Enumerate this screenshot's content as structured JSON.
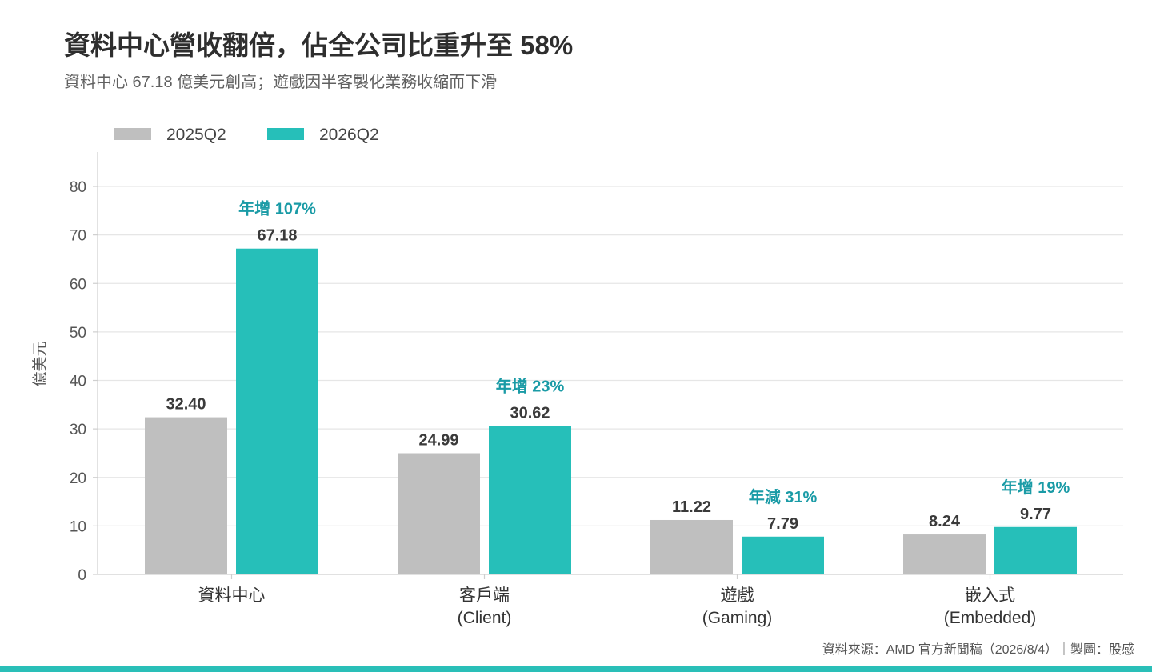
{
  "title": "資料中心營收翻倍，佔全公司比重升至 58%",
  "subtitle": "資料中心 67.18 億美元創高；遊戲因半客製化業務收縮而下滑",
  "source": "資料來源：AMD 官方新聞稿（2026/8/4）｜製圖：股感",
  "colors": {
    "series_2025": "#bfbfbf",
    "series_2026": "#26bfb9",
    "annotation": "#1a9ba6",
    "value_label": "#3a3a3a",
    "grid": "#e6e6e6",
    "axis": "#cfcfcf",
    "accent_band": "#2abfb8"
  },
  "chart_data": {
    "type": "bar",
    "ylabel": "億美元",
    "xlabel": "",
    "ylim": [
      0,
      80
    ],
    "yticks": [
      0,
      10,
      20,
      30,
      40,
      50,
      60,
      70,
      80
    ],
    "grid": true,
    "legend_position": "top-left",
    "categories": [
      [
        "資料中心"
      ],
      [
        "客戶端",
        "(Client)"
      ],
      [
        "遊戲",
        "(Gaming)"
      ],
      [
        "嵌入式",
        "(Embedded)"
      ]
    ],
    "series": [
      {
        "name": "2025Q2",
        "values": [
          32.4,
          24.99,
          11.22,
          8.24
        ],
        "labels": [
          "32.40",
          "24.99",
          "11.22",
          "8.24"
        ]
      },
      {
        "name": "2026Q2",
        "values": [
          67.18,
          30.62,
          7.79,
          9.77
        ],
        "labels": [
          "67.18",
          "30.62",
          "7.79",
          "9.77"
        ]
      }
    ],
    "annotations": [
      "年增 107%",
      "年增 23%",
      "年減 31%",
      "年增 19%"
    ]
  }
}
